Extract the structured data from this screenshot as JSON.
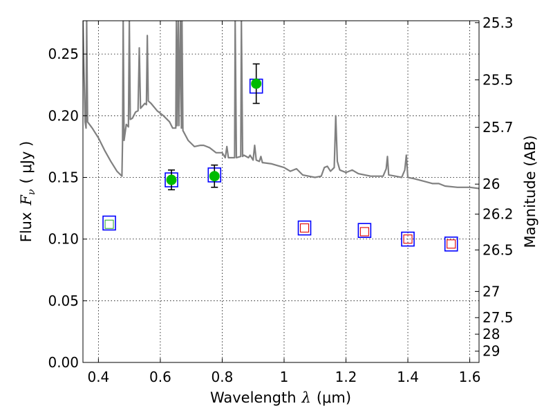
{
  "chart_data": {
    "type": "scatter",
    "xlabel_prefix": "Wavelength",
    "xlabel_symbol": "λ",
    "xlabel_units": "(μm)",
    "ylabel_prefix": "Flux",
    "ylabel_symbol_main": "F",
    "ylabel_symbol_sub": "ν",
    "ylabel_units": "( μJy )",
    "y2label": "Magnitude (AB)",
    "xlim": [
      0.35,
      1.63
    ],
    "ylim": [
      0.0,
      0.277
    ],
    "grid": true,
    "x_ticks": [
      {
        "v": 0.4,
        "label": "0.4"
      },
      {
        "v": 0.6,
        "label": "0.6"
      },
      {
        "v": 0.8,
        "label": "0.8"
      },
      {
        "v": 1.0,
        "label": "1"
      },
      {
        "v": 1.2,
        "label": "1.2"
      },
      {
        "v": 1.4,
        "label": "1.4"
      },
      {
        "v": 1.6,
        "label": "1.6"
      }
    ],
    "y_ticks": [
      {
        "v": 0.0,
        "label": "0.00"
      },
      {
        "v": 0.05,
        "label": "0.05"
      },
      {
        "v": 0.1,
        "label": "0.10"
      },
      {
        "v": 0.15,
        "label": "0.15"
      },
      {
        "v": 0.2,
        "label": "0.20"
      },
      {
        "v": 0.25,
        "label": "0.25"
      }
    ],
    "mag_ticks": [
      {
        "mag": 25.3,
        "label": "25.3"
      },
      {
        "mag": 25.5,
        "label": "25.5"
      },
      {
        "mag": 25.7,
        "label": "25.7"
      },
      {
        "mag": 26.0,
        "label": "26"
      },
      {
        "mag": 26.2,
        "label": "26.2"
      },
      {
        "mag": 26.5,
        "label": "26.5"
      },
      {
        "mag": 27.0,
        "label": "27"
      },
      {
        "mag": 27.5,
        "label": "27.5"
      },
      {
        "mag": 28.0,
        "label": "28"
      },
      {
        "mag": 29.0,
        "label": "29"
      }
    ],
    "colors": {
      "spectrum": "#808080",
      "model_box": "#0000ff",
      "observed": "#00bb00",
      "upper_limit": "#dd0000",
      "weak_detection": "#33aa33",
      "errorbar": "#000000"
    },
    "model_points": [
      {
        "x": 0.435,
        "y": 0.113
      },
      {
        "x": 0.636,
        "y": 0.148
      },
      {
        "x": 0.775,
        "y": 0.152
      },
      {
        "x": 0.91,
        "y": 0.224
      },
      {
        "x": 1.066,
        "y": 0.109
      },
      {
        "x": 1.26,
        "y": 0.107
      },
      {
        "x": 1.4,
        "y": 0.1
      },
      {
        "x": 1.54,
        "y": 0.096
      }
    ],
    "detections": [
      {
        "x": 0.636,
        "y": 0.148,
        "err": 0.008
      },
      {
        "x": 0.775,
        "y": 0.151,
        "err": 0.009
      },
      {
        "x": 0.91,
        "y": 0.226,
        "err": 0.016
      }
    ],
    "weak_points": [
      {
        "x": 0.435,
        "y": 0.112
      }
    ],
    "upper_limits": [
      {
        "x": 1.066,
        "y": 0.109
      },
      {
        "x": 1.26,
        "y": 0.106
      },
      {
        "x": 1.4,
        "y": 0.1
      },
      {
        "x": 1.54,
        "y": 0.096
      }
    ],
    "spectrum": [
      [
        0.35,
        0.277
      ],
      [
        0.357,
        0.195
      ],
      [
        0.36,
        0.19
      ],
      [
        0.362,
        0.277
      ],
      [
        0.365,
        0.195
      ],
      [
        0.38,
        0.19
      ],
      [
        0.4,
        0.182
      ],
      [
        0.42,
        0.172
      ],
      [
        0.44,
        0.163
      ],
      [
        0.46,
        0.155
      ],
      [
        0.476,
        0.151
      ],
      [
        0.478,
        0.18
      ],
      [
        0.48,
        0.277
      ],
      [
        0.483,
        0.18
      ],
      [
        0.49,
        0.193
      ],
      [
        0.497,
        0.191
      ],
      [
        0.5,
        0.277
      ],
      [
        0.503,
        0.197
      ],
      [
        0.51,
        0.198
      ],
      [
        0.52,
        0.203
      ],
      [
        0.528,
        0.204
      ],
      [
        0.532,
        0.255
      ],
      [
        0.536,
        0.206
      ],
      [
        0.55,
        0.21
      ],
      [
        0.555,
        0.209
      ],
      [
        0.558,
        0.265
      ],
      [
        0.561,
        0.212
      ],
      [
        0.57,
        0.21
      ],
      [
        0.59,
        0.204
      ],
      [
        0.61,
        0.2
      ],
      [
        0.63,
        0.195
      ],
      [
        0.64,
        0.19
      ],
      [
        0.65,
        0.19
      ],
      [
        0.652,
        0.277
      ],
      [
        0.654,
        0.192
      ],
      [
        0.658,
        0.277
      ],
      [
        0.66,
        0.192
      ],
      [
        0.665,
        0.277
      ],
      [
        0.668,
        0.19
      ],
      [
        0.67,
        0.277
      ],
      [
        0.673,
        0.188
      ],
      [
        0.69,
        0.18
      ],
      [
        0.71,
        0.175
      ],
      [
        0.73,
        0.176
      ],
      [
        0.74,
        0.176
      ],
      [
        0.75,
        0.175
      ],
      [
        0.76,
        0.174
      ],
      [
        0.78,
        0.17
      ],
      [
        0.8,
        0.17
      ],
      [
        0.81,
        0.166
      ],
      [
        0.815,
        0.175
      ],
      [
        0.82,
        0.166
      ],
      [
        0.84,
        0.166
      ],
      [
        0.842,
        0.277
      ],
      [
        0.846,
        0.166
      ],
      [
        0.86,
        0.167
      ],
      [
        0.862,
        0.277
      ],
      [
        0.866,
        0.167
      ],
      [
        0.87,
        0.168
      ],
      [
        0.885,
        0.166
      ],
      [
        0.89,
        0.168
      ],
      [
        0.9,
        0.164
      ],
      [
        0.905,
        0.176
      ],
      [
        0.91,
        0.164
      ],
      [
        0.92,
        0.163
      ],
      [
        0.925,
        0.167
      ],
      [
        0.93,
        0.162
      ],
      [
        0.96,
        0.161
      ],
      [
        1.0,
        0.158
      ],
      [
        1.02,
        0.155
      ],
      [
        1.04,
        0.157
      ],
      [
        1.06,
        0.152
      ],
      [
        1.1,
        0.15
      ],
      [
        1.12,
        0.151
      ],
      [
        1.13,
        0.158
      ],
      [
        1.14,
        0.159
      ],
      [
        1.15,
        0.155
      ],
      [
        1.162,
        0.158
      ],
      [
        1.167,
        0.2
      ],
      [
        1.172,
        0.163
      ],
      [
        1.18,
        0.156
      ],
      [
        1.2,
        0.154
      ],
      [
        1.22,
        0.156
      ],
      [
        1.24,
        0.153
      ],
      [
        1.28,
        0.151
      ],
      [
        1.32,
        0.151
      ],
      [
        1.33,
        0.157
      ],
      [
        1.334,
        0.167
      ],
      [
        1.338,
        0.152
      ],
      [
        1.36,
        0.151
      ],
      [
        1.38,
        0.15
      ],
      [
        1.39,
        0.156
      ],
      [
        1.395,
        0.168
      ],
      [
        1.4,
        0.15
      ],
      [
        1.42,
        0.149
      ],
      [
        1.45,
        0.147
      ],
      [
        1.48,
        0.145
      ],
      [
        1.5,
        0.145
      ],
      [
        1.52,
        0.143
      ],
      [
        1.56,
        0.142
      ],
      [
        1.6,
        0.142
      ],
      [
        1.63,
        0.141
      ]
    ]
  }
}
